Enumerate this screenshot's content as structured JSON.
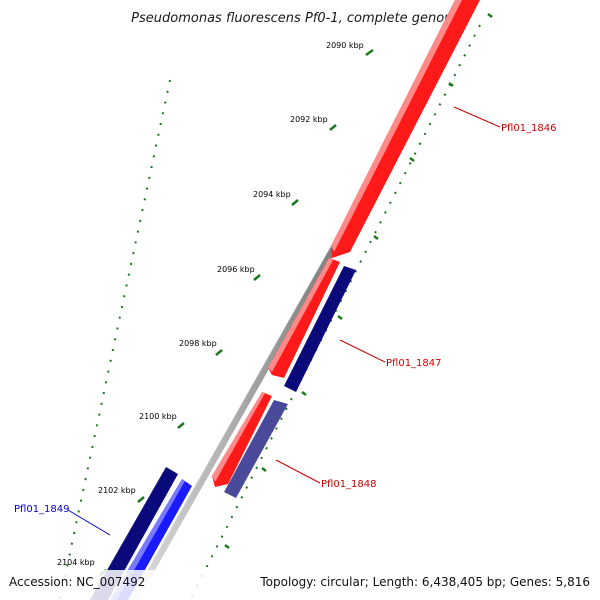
{
  "title": "Pseudomonas fluorescens Pf0-1, complete genome",
  "footer": {
    "accession": "Accession: NC_007492",
    "summary": "Topology: circular; Length: 6,438,405 bp; Genes: 5,816"
  },
  "ticks": [
    "2090 kbp",
    "2092 kbp",
    "2094 kbp",
    "2096 kbp",
    "2098 kbp",
    "2100 kbp",
    "2102 kbp",
    "2104 kbp"
  ],
  "genes": [
    {
      "id": "Pfl01_1846",
      "color": "#cc0000"
    },
    {
      "id": "Pfl01_1847",
      "color": "#cc0000"
    },
    {
      "id": "Pfl01_1848",
      "color": "#cc0000"
    },
    {
      "id": "Pfl01_1849",
      "color": "#0000cc"
    }
  ],
  "colors": {
    "forward_gene": "#ff1a1a",
    "reverse_dark": "#0a0a7a",
    "reverse_blue": "#1a1aff",
    "reverse_slate": "#4a4a9a",
    "backbone": "#8a8a8a",
    "tick": "#1a7a1a"
  }
}
